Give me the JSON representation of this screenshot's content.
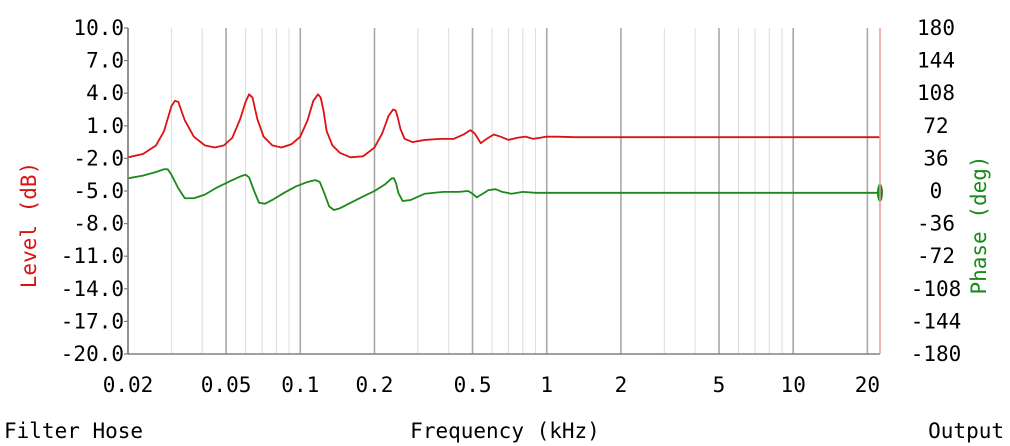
{
  "footer": {
    "left": "Filter Hose",
    "center": "Frequency (kHz)",
    "right": "Output"
  },
  "colors": {
    "level": "#dd1111",
    "phase": "#1a8a1a",
    "grid_major": "#a8a8a8",
    "grid_minor": "#dcdcdc"
  },
  "chart_data": {
    "type": "line",
    "xscale": "log",
    "xlabel": "Frequency (kHz)",
    "xlim": [
      0.02,
      22.5
    ],
    "x_tick_labels": [
      "0.02",
      "0.05",
      "0.1",
      "0.2",
      "0.5",
      "1",
      "2",
      "5",
      "10",
      "20"
    ],
    "x_tick_values": [
      0.02,
      0.05,
      0.1,
      0.2,
      0.5,
      1,
      2,
      5,
      10,
      20
    ],
    "ylabel": "Level (dB)",
    "ylim": [
      -20,
      10
    ],
    "y_tick_labels": [
      "10.0",
      "7.0",
      "4.0",
      "1.0",
      "-2.0",
      "-5.0",
      "-8.0",
      "-11.0",
      "-14.0",
      "-17.0",
      "-20.0"
    ],
    "y_tick_values": [
      10,
      7,
      4,
      1,
      -2,
      -5,
      -8,
      -11,
      -14,
      -17,
      -20
    ],
    "y2label": "Phase (deg)",
    "y2lim": [
      -180,
      180
    ],
    "y2_tick_labels": [
      "180",
      "144",
      "108",
      "72",
      "36",
      "0",
      "-36",
      "-72",
      "-108",
      "-144",
      "-180"
    ],
    "y2_tick_values": [
      180,
      144,
      108,
      72,
      36,
      0,
      -36,
      -72,
      -108,
      -144,
      -180
    ],
    "grid": true,
    "series": [
      {
        "name": "Level (dB)",
        "axis": "left",
        "x": [
          0.02,
          0.023,
          0.026,
          0.028,
          0.03,
          0.031,
          0.032,
          0.034,
          0.037,
          0.041,
          0.045,
          0.049,
          0.053,
          0.057,
          0.06,
          0.062,
          0.064,
          0.067,
          0.071,
          0.077,
          0.084,
          0.092,
          0.1,
          0.107,
          0.113,
          0.118,
          0.121,
          0.124,
          0.128,
          0.135,
          0.145,
          0.16,
          0.18,
          0.2,
          0.215,
          0.228,
          0.238,
          0.244,
          0.249,
          0.255,
          0.265,
          0.285,
          0.32,
          0.37,
          0.42,
          0.46,
          0.49,
          0.51,
          0.54,
          0.57,
          0.61,
          0.65,
          0.7,
          0.76,
          0.82,
          0.88,
          0.94,
          1.0,
          1.1,
          1.3,
          2,
          5,
          10,
          20,
          22.5
        ],
        "values": [
          -1.9,
          -1.6,
          -0.8,
          0.5,
          2.8,
          3.3,
          3.2,
          1.5,
          0.0,
          -0.8,
          -1.0,
          -0.8,
          -0.1,
          1.6,
          3.2,
          3.9,
          3.6,
          1.6,
          0.0,
          -0.8,
          -1.0,
          -0.7,
          0.0,
          1.5,
          3.3,
          3.9,
          3.6,
          2.5,
          0.5,
          -0.8,
          -1.5,
          -1.9,
          -1.8,
          -1.0,
          0.3,
          1.9,
          2.5,
          2.4,
          1.7,
          0.7,
          -0.2,
          -0.5,
          -0.3,
          -0.2,
          -0.2,
          0.2,
          0.6,
          0.3,
          -0.6,
          -0.2,
          0.2,
          0.0,
          -0.3,
          -0.1,
          0.0,
          -0.2,
          -0.1,
          0.0,
          0.0,
          -0.05,
          -0.05,
          -0.05,
          -0.05,
          -0.05,
          -0.05
        ]
      },
      {
        "name": "Phase (deg)",
        "axis": "right",
        "x": [
          0.02,
          0.023,
          0.026,
          0.028,
          0.029,
          0.03,
          0.032,
          0.034,
          0.037,
          0.041,
          0.046,
          0.052,
          0.057,
          0.06,
          0.062,
          0.065,
          0.068,
          0.072,
          0.078,
          0.086,
          0.096,
          0.107,
          0.115,
          0.12,
          0.125,
          0.131,
          0.137,
          0.145,
          0.16,
          0.18,
          0.2,
          0.22,
          0.235,
          0.24,
          0.245,
          0.25,
          0.26,
          0.28,
          0.32,
          0.38,
          0.44,
          0.48,
          0.5,
          0.52,
          0.55,
          0.58,
          0.62,
          0.66,
          0.72,
          0.8,
          0.9,
          1.0,
          2,
          5,
          10,
          20,
          22.5
        ],
        "values": [
          14,
          17,
          21,
          24,
          24,
          18,
          3,
          -8,
          -8,
          -4,
          4,
          11,
          16,
          18,
          15,
          0,
          -13,
          -14,
          -9,
          -2,
          5,
          10,
          12,
          10,
          -2,
          -17,
          -21,
          -19,
          -13,
          -6,
          0,
          7,
          14,
          14,
          8,
          -2,
          -11,
          -10,
          -3,
          -1,
          -1,
          0,
          -3,
          -7,
          -3,
          1,
          2,
          -1,
          -3,
          -1,
          -2,
          -2,
          -2,
          -2,
          -2,
          -2,
          -2
        ]
      }
    ]
  }
}
